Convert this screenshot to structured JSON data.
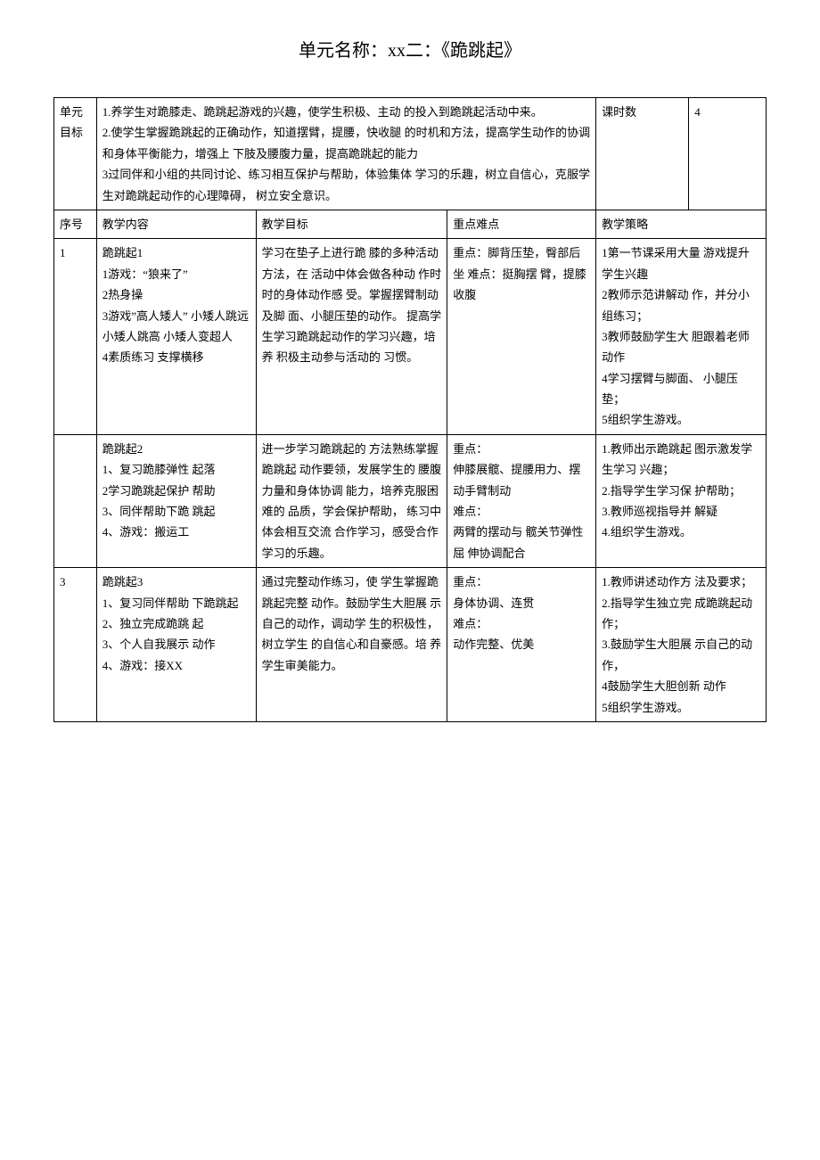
{
  "title": "单元名称：xx二：《跪跳起》",
  "unitGoal": {
    "label": "单元目标",
    "text": "1.养学生对跪膝走、跪跳起游戏的兴趣，使学生积极、主动 的投入到跪跳起活动中来。\n2.使学生掌握跪跳起的正确动作，知道摆臂，提腰，快收腿 的时机和方法，提高学生动作的协调和身体平衡能力，增强上 下肢及腰腹力量，提高跪跳起的能力\n3过同伴和小组的共同讨论、练习相互保护与帮助，体验集体 学习的乐趣，树立自信心，克服学生对跪跳起动作的心理障碍，  树立安全意识。",
    "lessonCountLabel": "课时数",
    "lessonCount": "4"
  },
  "headers": {
    "seq": "序号",
    "content": "教学内容",
    "goal": "教学目标",
    "keypoint": "重点难点",
    "strategy": "教学策略"
  },
  "rows": [
    {
      "seq": "1",
      "content": "跪跳起1\n1游戏：“狼来了”\n2热身操\n3游戏”高人矮人” 小矮人跳远 小矮人跳高 小矮人变超人\n4素质练习 支撑横移",
      "goal": "学习在垫子上进行跪 膝的多种活动方法，在 活动中体会做各种动 作时时的身体动作感 受。掌握摆臂制动及脚 面、小腿压垫的动作。 提高学生学习跪跳起动作的学习兴趣，培养 积极主动参与活动的 习惯。",
      "keypoint": "重点：脚背压垫，臀部后坐 难点：挺胸摆 臂，提膝收腹",
      "strategy": "1第一节课采用大量 游戏提升学生兴趣\n2教师示范讲解动 作，并分小组练习；\n3教师鼓励学生大 胆跟着老师动作\n4学习摆臂与脚面、 小腿压垫；\n5组织学生游戏。"
    },
    {
      "seq": "",
      "content": "跪跳起2\n1、复习跪膝弹性 起落\n2学习跪跳起保护 帮助\n3、同伴帮助下跪 跳起\n4、游戏：搬运工",
      "goal": "进一步学习跪跳起的  方法熟练掌握跪跳起 动作要领，发展学生的 腰腹力量和身体协调 能力，培养克服困难的 品质，学会保护帮助， 练习中体会相互交流 合作学习，感受合作学习的乐趣。",
      "keypoint": "重点：\n伸膝展髋、提腰用力、摆动手臂制动\n难点：\n两臂的摆动与 髋关节弹性屈 伸协调配合",
      "strategy": "1.教师出示跪跳起 图示激发学生学习 兴趣；\n2.指导学生学习保  护帮助；\n3.教师巡视指导并 解疑\n4.组织学生游戏。"
    },
    {
      "seq": "3",
      "content": "跪跳起3\n 1、复习同伴帮助 下跪跳起\n2、独立完成跪跳 起\n3、个人自我展示 动作\n4、游戏：接XX",
      "goal": "通过完整动作练习，使 学生掌握跪跳起完整 动作。鼓励学生大胆展 示自己的动作，调动学 生的积极性，树立学生 的自信心和自豪感。培 养学生审美能力。",
      "keypoint": "重点：\n身体协调、连贯\n难点：\n动作完整、优美",
      "strategy": "1.教师讲述动作方 法及要求；\n2.指导学生独立完 成跪跳起动作；\n3.鼓励学生大胆展 示自己的动作，\n4鼓励学生大胆创新  动作\n5组织学生游戏。"
    }
  ]
}
